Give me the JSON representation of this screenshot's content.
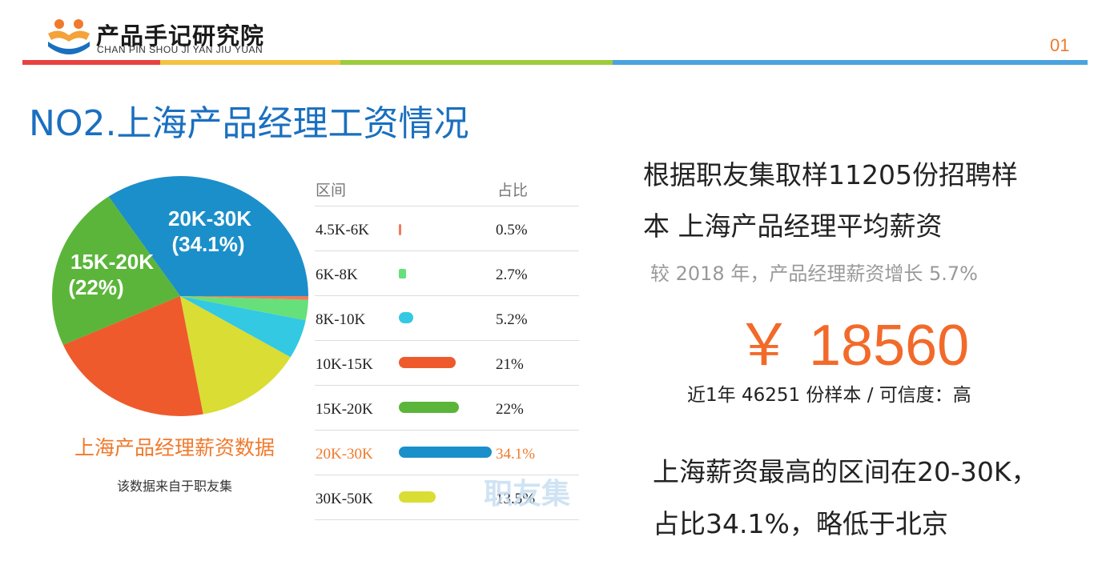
{
  "brand": {
    "title": "产品手记研究院",
    "subtitle": "CHAN PIN SHOU JI YAN JIU YUAN"
  },
  "page_number": "01",
  "header_bar_colors": [
    "#e8423f",
    "#f4c241",
    "#9ccc3c",
    "#4aa3df"
  ],
  "headline": "NO2.上海产品经理工资情况",
  "chart_data": {
    "type": "pie",
    "slices": [
      {
        "label": "4.5K-6K",
        "value": 0.5,
        "color": "#f07a5a"
      },
      {
        "label": "6K-8K",
        "value": 2.7,
        "color": "#66e07a"
      },
      {
        "label": "8K-10K",
        "value": 5.2,
        "color": "#33c9e3"
      },
      {
        "label": "10K-15K",
        "value": 21,
        "color": "#ee5a2c"
      },
      {
        "label": "15K-20K",
        "value": 22,
        "color": "#5bb53a"
      },
      {
        "label": "20K-30K",
        "value": 34.1,
        "color": "#1b8fca"
      },
      {
        "label": "30K-50K",
        "value": 13.5,
        "color": "#dadd33"
      }
    ],
    "slice_labels": [
      {
        "line1": "20K-30K",
        "line2": "(34.1%)"
      },
      {
        "line1": "15K-20K",
        "line2": "(22%)"
      }
    ]
  },
  "pie_caption": "上海产品经理薪资数据",
  "pie_source": "该数据来自于职友集",
  "table": {
    "header_range": "区间",
    "header_share": "占比",
    "rows": [
      {
        "range": "4.5K-6K",
        "share": "0.5%"
      },
      {
        "range": "6K-8K",
        "share": "2.7%"
      },
      {
        "range": "8K-10K",
        "share": "5.2%"
      },
      {
        "range": "10K-15K",
        "share": "21%"
      },
      {
        "range": "15K-20K",
        "share": "22%"
      },
      {
        "range": "20K-30K",
        "share": "34.1%"
      },
      {
        "range": "30K-50K",
        "share": "13.5%"
      }
    ],
    "highlight_color": "#f07a2c"
  },
  "watermark": "职友集",
  "description": {
    "line1": "根据职友集取样11205份招聘样",
    "line2": "本 上海产品经理平均薪资",
    "growth": "较 2018 年，产品经理薪资增长 5.7%",
    "salary": "￥ 18560",
    "sample": "近1年 46251 份样本 / 可信度：高"
  },
  "conclusion": {
    "line1": "上海薪资最高的区间在20-30K，",
    "line2": "占比34.1%，略低于北京"
  }
}
